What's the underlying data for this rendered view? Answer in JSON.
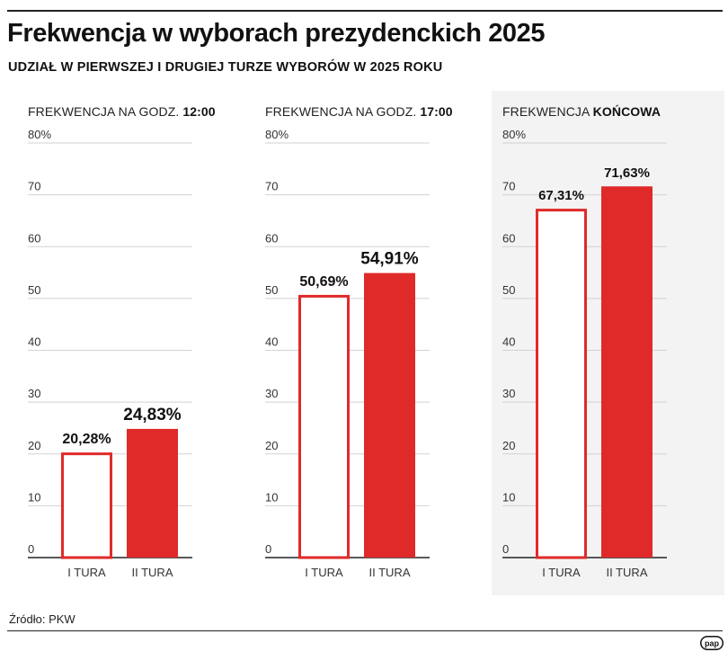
{
  "header": {
    "title": "Frekwencja w wyborach prezydenckich 2025",
    "subtitle": "UDZIAŁ W PIERWSZEJ I DRUGIEJ TURZE WYBORÓW W 2025 ROKU"
  },
  "colors": {
    "accent": "#e02a2a",
    "outline_fill": "#ffffff",
    "grid": "#d2d2d2",
    "axis": "#222222",
    "highlight_panel": "#f3f3f3"
  },
  "chart_data": [
    {
      "type": "bar",
      "title_prefix": "FREKWENCJA NA GODZ. ",
      "title_bold": "12:00",
      "categories": [
        "I TURA",
        "II TURA"
      ],
      "values": [
        20.28,
        24.83
      ],
      "value_labels": [
        "20,28%",
        "24,83%"
      ],
      "ylim": [
        0,
        80
      ],
      "y_ticks": [
        0,
        10,
        20,
        30,
        40,
        50,
        60,
        70,
        80
      ],
      "y_tick_labels": [
        "0",
        "10",
        "20",
        "30",
        "40",
        "50",
        "60",
        "70",
        "80%"
      ],
      "grid": true
    },
    {
      "type": "bar",
      "title_prefix": "FREKWENCJA NA GODZ. ",
      "title_bold": "17:00",
      "categories": [
        "I TURA",
        "II TURA"
      ],
      "values": [
        50.69,
        54.91
      ],
      "value_labels": [
        "50,69%",
        "54,91%"
      ],
      "ylim": [
        0,
        80
      ],
      "y_ticks": [
        0,
        10,
        20,
        30,
        40,
        50,
        60,
        70,
        80
      ],
      "y_tick_labels": [
        "0",
        "10",
        "20",
        "30",
        "40",
        "50",
        "60",
        "70",
        "80%"
      ],
      "grid": true
    },
    {
      "type": "bar",
      "title_prefix": "FREKWENCJA ",
      "title_bold": "KOŃCOWA",
      "categories": [
        "I TURA",
        "II TURA"
      ],
      "values": [
        67.31,
        71.63
      ],
      "value_labels": [
        "67,31%",
        "71,63%"
      ],
      "ylim": [
        0,
        80
      ],
      "y_ticks": [
        0,
        10,
        20,
        30,
        40,
        50,
        60,
        70,
        80
      ],
      "y_tick_labels": [
        "0",
        "10",
        "20",
        "30",
        "40",
        "50",
        "60",
        "70",
        "80%"
      ],
      "grid": true
    }
  ],
  "footer": {
    "source": "Źródło: PKW",
    "logo": "pap"
  }
}
